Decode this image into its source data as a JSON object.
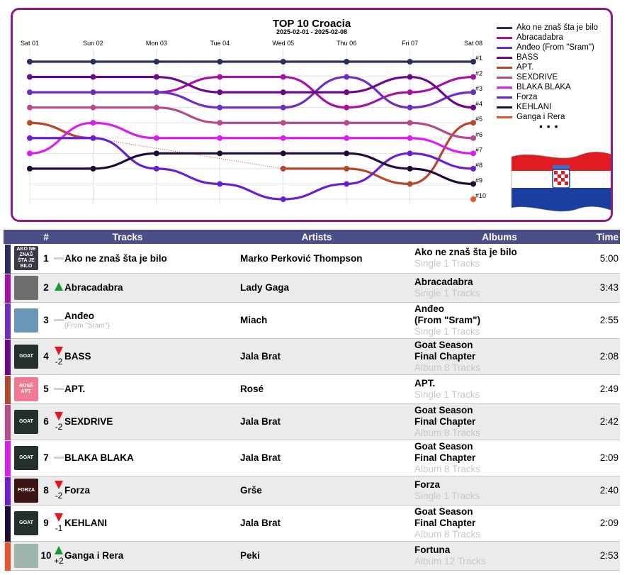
{
  "chart_data": {
    "type": "line",
    "title": "TOP 10 Croacia",
    "subtitle": "2025-02-01 - 2025-02-08",
    "x": [
      "Sat 01",
      "Sun 02",
      "Mon 03",
      "Tue 04",
      "Wed 05",
      "Thu 06",
      "Fri 07",
      "Sat 08"
    ],
    "y_tick_labels": [
      "#1",
      "#2",
      "#3",
      "#4",
      "#5",
      "#6",
      "#7",
      "#8",
      "#9",
      "#10"
    ],
    "ylim": [
      1,
      10
    ],
    "y_inverted": true,
    "legend_position": "right",
    "legend_overflow": "• • •",
    "series": [
      {
        "name": "Ako ne znaš šta je bilo",
        "color": "#2c2c5e",
        "values": [
          1,
          1,
          1,
          1,
          1,
          1,
          1,
          1
        ]
      },
      {
        "name": "Abracadabra",
        "color": "#a512a8",
        "values": [
          null,
          null,
          3,
          2,
          2,
          4,
          3,
          2
        ]
      },
      {
        "name": "Anđeo (From \"Sram\")",
        "color": "#6d2ec1",
        "values": [
          3,
          3,
          3,
          4,
          4,
          2,
          4,
          3
        ]
      },
      {
        "name": "BASS",
        "color": "#6a0a8a",
        "values": [
          2,
          2,
          2,
          3,
          3,
          3,
          2,
          4
        ]
      },
      {
        "name": "APT.",
        "color": "#b5472a",
        "values": [
          5,
          6,
          null,
          null,
          8,
          8,
          9,
          5
        ]
      },
      {
        "name": "SEXDRIVE",
        "color": "#b54b8a",
        "values": [
          4,
          4,
          4,
          5,
          5,
          5,
          5,
          6
        ]
      },
      {
        "name": "BLAKA BLAKA",
        "color": "#d81ff0",
        "values": [
          7,
          5,
          6,
          6,
          6,
          6,
          6,
          7
        ]
      },
      {
        "name": "Forza",
        "color": "#6a1fd1",
        "values": [
          6,
          6,
          8,
          9,
          10,
          9,
          7,
          8
        ]
      },
      {
        "name": "KEHLANI",
        "color": "#1f0b3a",
        "values": [
          8,
          8,
          7,
          7,
          7,
          7,
          8,
          9
        ]
      },
      {
        "name": "Ganga i Rera",
        "color": "#e8542e",
        "values": [
          null,
          null,
          null,
          null,
          null,
          null,
          null,
          10
        ]
      }
    ]
  },
  "table": {
    "headers": {
      "rank": "#",
      "tracks": "Tracks",
      "artists": "Artists",
      "albums": "Albums",
      "time": "Time"
    },
    "header_color": "#4b4e87",
    "rows": [
      {
        "rank": "1",
        "move": "same",
        "move_value": "",
        "title": "Ako ne znaš šta je bilo",
        "subtitle": "",
        "artist": "Marko Perković Thompson",
        "album_lines": [
          "Ako ne znaš šta je bilo"
        ],
        "album_meta": "Single 1 Tracks",
        "time": "5:00",
        "color": "#2c2c5e",
        "art": {
          "bg": "#3a3a46",
          "text": "AKO NE ZNAŠ ŠTA JE BILO"
        }
      },
      {
        "rank": "2",
        "move": "up",
        "move_value": "",
        "title": "Abracadabra",
        "subtitle": "",
        "artist": "Lady Gaga",
        "album_lines": [
          "Abracadabra"
        ],
        "album_meta": "Single 1 Tracks",
        "time": "3:43",
        "color": "#a512a8",
        "art": {
          "bg": "#6e6e6e",
          "text": ""
        }
      },
      {
        "rank": "3",
        "move": "same",
        "move_value": "",
        "title": "Anđeo",
        "subtitle": "(From \"Sram\")",
        "artist": "Miach",
        "album_lines": [
          "Anđeo",
          "(From \"Sram\")"
        ],
        "album_meta": "Single 1 Tracks",
        "time": "2:55",
        "color": "#6d2ec1",
        "art": {
          "bg": "#6a97b8",
          "text": ""
        }
      },
      {
        "rank": "4",
        "move": "down",
        "move_value": "-2",
        "title": "BASS",
        "subtitle": "",
        "artist": "Jala Brat",
        "album_lines": [
          "Goat Season",
          "Final Chapter"
        ],
        "album_meta": "Album 8 Tracks",
        "time": "2:08",
        "color": "#6a0a8a",
        "art": {
          "bg": "#24312a",
          "text": "GOAT"
        }
      },
      {
        "rank": "5",
        "move": "same",
        "move_value": "",
        "title": "APT.",
        "subtitle": "",
        "artist": "Rosé",
        "album_lines": [
          "APT."
        ],
        "album_meta": "Single 1 Tracks",
        "time": "2:49",
        "color": "#b5472a",
        "art": {
          "bg": "#f07a93",
          "text": "ROSÉ APT."
        }
      },
      {
        "rank": "6",
        "move": "down",
        "move_value": "-2",
        "title": "SEXDRIVE",
        "subtitle": "",
        "artist": "Jala Brat",
        "album_lines": [
          "Goat Season",
          "Final Chapter"
        ],
        "album_meta": "Album 8 Tracks",
        "time": "2:42",
        "color": "#b54b8a",
        "art": {
          "bg": "#24312a",
          "text": "GOAT"
        }
      },
      {
        "rank": "7",
        "move": "same",
        "move_value": "",
        "title": "BLAKA BLAKA",
        "subtitle": "",
        "artist": "Jala Brat",
        "album_lines": [
          "Goat Season",
          "Final Chapter"
        ],
        "album_meta": "Album 8 Tracks",
        "time": "2:09",
        "color": "#d81ff0",
        "art": {
          "bg": "#24312a",
          "text": "GOAT"
        }
      },
      {
        "rank": "8",
        "move": "down",
        "move_value": "-2",
        "title": "Forza",
        "subtitle": "",
        "artist": "Grše",
        "album_lines": [
          "Forza"
        ],
        "album_meta": "Single 1 Tracks",
        "time": "2:40",
        "color": "#6a1fd1",
        "art": {
          "bg": "#3b1414",
          "text": "FORZA"
        }
      },
      {
        "rank": "9",
        "move": "down",
        "move_value": "-1",
        "title": "KEHLANI",
        "subtitle": "",
        "artist": "Jala Brat",
        "album_lines": [
          "Goat Season",
          "Final Chapter"
        ],
        "album_meta": "Album 8 Tracks",
        "time": "2:09",
        "color": "#1f0b3a",
        "art": {
          "bg": "#24312a",
          "text": "GOAT"
        }
      },
      {
        "rank": "10",
        "move": "up",
        "move_value": "+2",
        "title": "Ganga i Rera",
        "subtitle": "",
        "artist": "Peki",
        "album_lines": [
          "Fortuna"
        ],
        "album_meta": "Album 12 Tracks",
        "time": "2:53",
        "color": "#e8542e",
        "art": {
          "bg": "#9fb5b0",
          "text": ""
        }
      }
    ]
  }
}
